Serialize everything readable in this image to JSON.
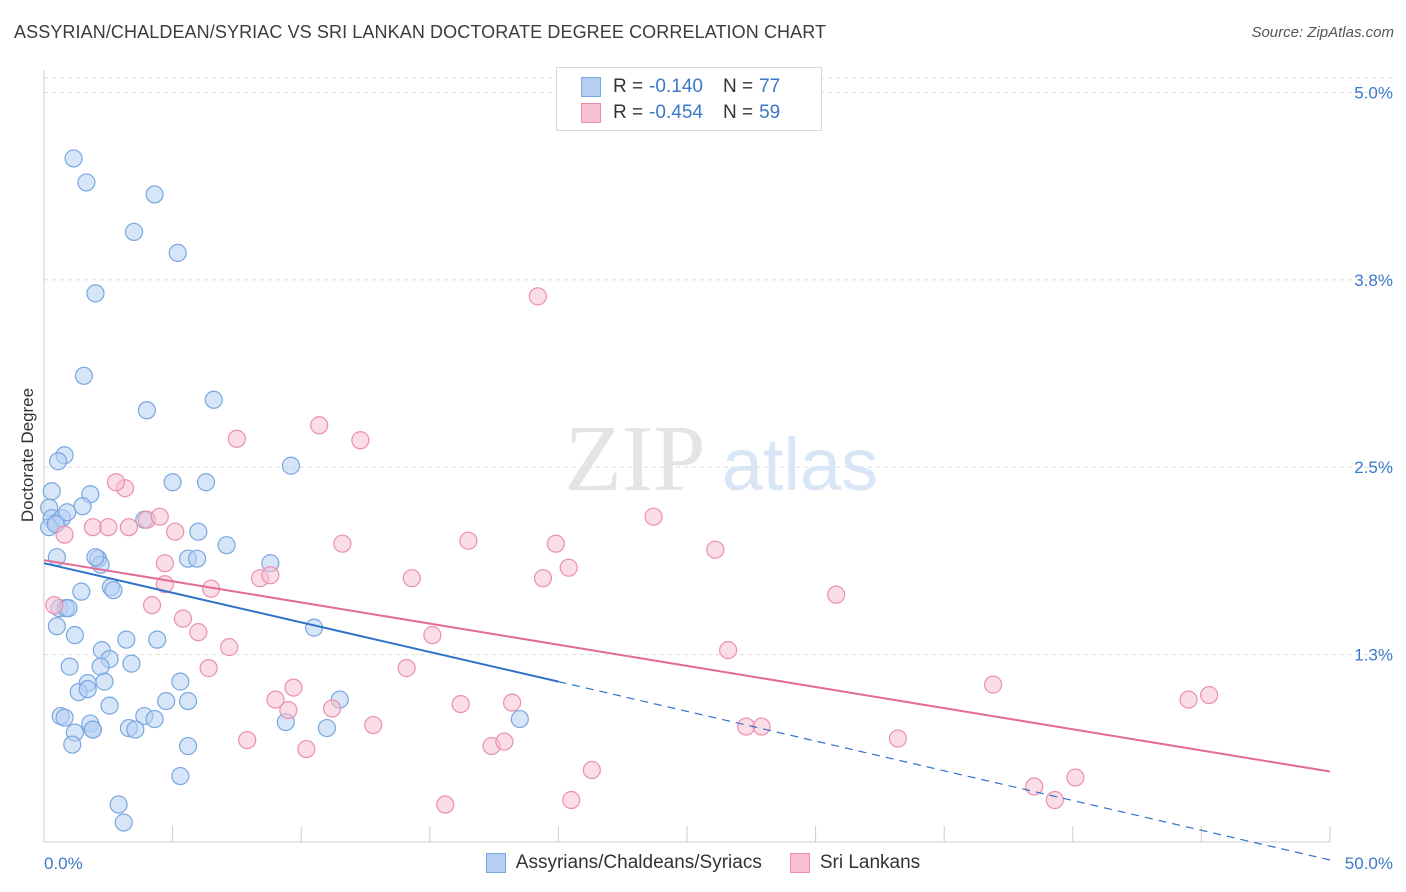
{
  "header": {
    "title": "ASSYRIAN/CHALDEAN/SYRIAC VS SRI LANKAN DOCTORATE DEGREE CORRELATION CHART",
    "source": "Source: ZipAtlas.com"
  },
  "watermark": {
    "zip": "ZIP",
    "atlas": "atlas"
  },
  "legend_top": {
    "rows": [
      {
        "r_label": "R =",
        "r_value": "-0.140",
        "n_label": "N =",
        "n_value": "77"
      },
      {
        "r_label": "R =",
        "r_value": "-0.454",
        "n_label": "N =",
        "n_value": "59"
      }
    ]
  },
  "legend_bottom": {
    "items": [
      "Assyrians/Chaldeans/Syriacs",
      "Sri Lankans"
    ]
  },
  "colors": {
    "blue_fill": "#b5cff2",
    "blue_stroke": "#7aa7e0",
    "blue_line": "#2f72c9",
    "pink_fill": "#f8c1d2",
    "pink_stroke": "#ec8fae",
    "pink_line": "#e36c96",
    "tick_label": "#3b78c9",
    "grid": "#dddddd"
  },
  "chart_data": {
    "type": "scatter",
    "title": "ASSYRIAN/CHALDEAN/SYRIAC VS SRI LANKAN DOCTORATE DEGREE CORRELATION CHART",
    "xlabel": "",
    "ylabel": "Doctorate Degree",
    "xlim": [
      0,
      50
    ],
    "ylim": [
      0,
      5.15
    ],
    "x_tick_labels": [
      "0.0%",
      "50.0%"
    ],
    "y_ticks": [
      1.25,
      2.5,
      3.75,
      5.0
    ],
    "y_tick_labels": [
      "1.3%",
      "2.5%",
      "3.8%",
      "5.0%"
    ],
    "grid": true,
    "series": [
      {
        "name": "Assyrians/Chaldeans/Syriacs",
        "color": "#7aa7e0",
        "r": -0.14,
        "n": 77,
        "points": [
          [
            1.15,
            4.56
          ],
          [
            1.65,
            4.4
          ],
          [
            4.3,
            4.32
          ],
          [
            3.5,
            4.07
          ],
          [
            5.2,
            3.93
          ],
          [
            2.0,
            3.66
          ],
          [
            1.55,
            3.11
          ],
          [
            4.0,
            2.88
          ],
          [
            6.6,
            2.95
          ],
          [
            0.8,
            2.58
          ],
          [
            0.55,
            2.54
          ],
          [
            9.6,
            2.51
          ],
          [
            5.0,
            2.4
          ],
          [
            6.3,
            2.4
          ],
          [
            0.3,
            2.34
          ],
          [
            1.8,
            2.32
          ],
          [
            0.2,
            2.23
          ],
          [
            1.5,
            2.24
          ],
          [
            0.3,
            2.16
          ],
          [
            0.5,
            2.13
          ],
          [
            0.7,
            2.16
          ],
          [
            0.2,
            2.1
          ],
          [
            0.45,
            2.12
          ],
          [
            3.9,
            2.15
          ],
          [
            6.0,
            2.07
          ],
          [
            7.1,
            1.98
          ],
          [
            0.5,
            1.9
          ],
          [
            2.1,
            1.89
          ],
          [
            5.6,
            1.89
          ],
          [
            5.95,
            1.89
          ],
          [
            2.2,
            1.85
          ],
          [
            8.8,
            1.86
          ],
          [
            1.45,
            1.67
          ],
          [
            2.6,
            1.7
          ],
          [
            2.7,
            1.68
          ],
          [
            0.6,
            1.56
          ],
          [
            0.85,
            1.56
          ],
          [
            0.95,
            1.56
          ],
          [
            10.5,
            1.43
          ],
          [
            0.5,
            1.44
          ],
          [
            1.2,
            1.38
          ],
          [
            3.2,
            1.35
          ],
          [
            4.4,
            1.35
          ],
          [
            2.25,
            1.28
          ],
          [
            2.55,
            1.22
          ],
          [
            1.0,
            1.17
          ],
          [
            2.2,
            1.17
          ],
          [
            3.4,
            1.19
          ],
          [
            1.7,
            1.06
          ],
          [
            2.35,
            1.07
          ],
          [
            5.3,
            1.07
          ],
          [
            1.35,
            1.0
          ],
          [
            1.7,
            1.02
          ],
          [
            4.75,
            0.94
          ],
          [
            5.6,
            0.94
          ],
          [
            11.5,
            0.95
          ],
          [
            2.55,
            0.91
          ],
          [
            0.65,
            0.84
          ],
          [
            0.8,
            0.83
          ],
          [
            3.9,
            0.84
          ],
          [
            4.3,
            0.82
          ],
          [
            9.4,
            0.8
          ],
          [
            1.8,
            0.79
          ],
          [
            1.9,
            0.75
          ],
          [
            3.3,
            0.76
          ],
          [
            3.55,
            0.75
          ],
          [
            11.0,
            0.76
          ],
          [
            18.5,
            0.82
          ],
          [
            1.2,
            0.73
          ],
          [
            1.1,
            0.65
          ],
          [
            5.6,
            0.64
          ],
          [
            5.3,
            0.44
          ],
          [
            2.9,
            0.25
          ],
          [
            3.1,
            0.13
          ],
          [
            1.9,
            0.75
          ],
          [
            2.0,
            1.9
          ],
          [
            0.9,
            2.2
          ]
        ]
      },
      {
        "name": "Sri Lankans",
        "color": "#ec8fae",
        "r": -0.454,
        "n": 59,
        "points": [
          [
            0.4,
            1.58
          ],
          [
            0.8,
            2.05
          ],
          [
            1.9,
            2.1
          ],
          [
            2.5,
            2.1
          ],
          [
            3.15,
            2.36
          ],
          [
            2.8,
            2.4
          ],
          [
            4.0,
            2.15
          ],
          [
            4.5,
            2.17
          ],
          [
            3.3,
            2.1
          ],
          [
            5.1,
            2.07
          ],
          [
            7.5,
            2.69
          ],
          [
            10.7,
            2.78
          ],
          [
            12.3,
            2.68
          ],
          [
            19.2,
            3.64
          ],
          [
            23.7,
            2.17
          ],
          [
            11.6,
            1.99
          ],
          [
            16.5,
            2.01
          ],
          [
            19.9,
            1.99
          ],
          [
            26.1,
            1.95
          ],
          [
            20.4,
            1.83
          ],
          [
            14.3,
            1.76
          ],
          [
            19.4,
            1.76
          ],
          [
            8.4,
            1.76
          ],
          [
            8.8,
            1.78
          ],
          [
            4.7,
            1.86
          ],
          [
            4.7,
            1.72
          ],
          [
            6.5,
            1.69
          ],
          [
            30.8,
            1.65
          ],
          [
            4.2,
            1.58
          ],
          [
            5.4,
            1.49
          ],
          [
            6.0,
            1.4
          ],
          [
            7.2,
            1.3
          ],
          [
            15.1,
            1.38
          ],
          [
            26.6,
            1.28
          ],
          [
            6.4,
            1.16
          ],
          [
            14.1,
            1.16
          ],
          [
            9.7,
            1.03
          ],
          [
            9.0,
            0.95
          ],
          [
            9.5,
            0.88
          ],
          [
            11.2,
            0.89
          ],
          [
            16.2,
            0.92
          ],
          [
            18.2,
            0.93
          ],
          [
            36.9,
            1.05
          ],
          [
            44.5,
            0.95
          ],
          [
            45.3,
            0.98
          ],
          [
            12.8,
            0.78
          ],
          [
            27.3,
            0.77
          ],
          [
            27.9,
            0.77
          ],
          [
            7.9,
            0.68
          ],
          [
            10.2,
            0.62
          ],
          [
            17.4,
            0.64
          ],
          [
            17.9,
            0.67
          ],
          [
            33.2,
            0.69
          ],
          [
            21.3,
            0.48
          ],
          [
            40.1,
            0.43
          ],
          [
            38.5,
            0.37
          ],
          [
            39.3,
            0.28
          ],
          [
            20.5,
            0.28
          ],
          [
            15.6,
            0.25
          ]
        ]
      }
    ],
    "trend_lines": [
      {
        "series": "Assyrians/Chaldeans/Syriacs",
        "solid": [
          [
            0,
            1.86
          ],
          [
            20,
            1.07
          ]
        ],
        "dashed": [
          [
            20,
            1.07
          ],
          [
            50,
            -0.12
          ]
        ]
      },
      {
        "series": "Sri Lankans",
        "solid": [
          [
            0,
            1.88
          ],
          [
            50,
            0.47
          ]
        ]
      }
    ]
  }
}
